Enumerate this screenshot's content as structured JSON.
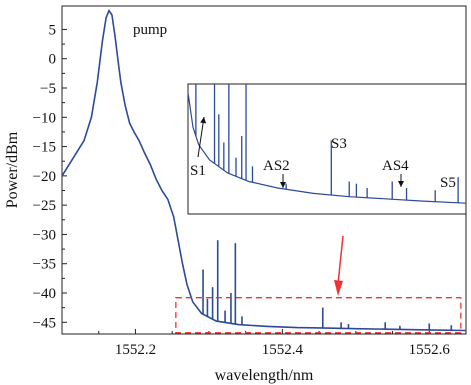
{
  "chart_data": {
    "type": "line",
    "title": "",
    "xlabel": "wavelength/nm",
    "ylabel": "Power/dBm",
    "xlim": [
      1552.1,
      1552.65
    ],
    "ylim": [
      -47,
      9
    ],
    "xticks": [
      "1552.2",
      "1552.4",
      "1552.6"
    ],
    "xtick_values": [
      1552.2,
      1552.4,
      1552.6
    ],
    "yticks": [
      "5",
      "0",
      "−5",
      "−10",
      "−15",
      "−20",
      "−25",
      "−30",
      "−35",
      "−40",
      "−45"
    ],
    "ytick_values": [
      5,
      0,
      -5,
      -10,
      -15,
      -20,
      -25,
      -30,
      -35,
      -40,
      -45
    ],
    "grid": false,
    "line_color": "#2b4a9b",
    "main_series": {
      "x": [
        1552.1,
        1552.115,
        1552.13,
        1552.14,
        1552.148,
        1552.155,
        1552.16,
        1552.164,
        1552.168,
        1552.172,
        1552.176,
        1552.18,
        1552.186,
        1552.192,
        1552.198,
        1552.205,
        1552.212,
        1552.22,
        1552.228,
        1552.236,
        1552.244,
        1552.252,
        1552.258,
        1552.264,
        1552.27,
        1552.278,
        1552.29,
        1552.31,
        1552.34,
        1552.38,
        1552.42,
        1552.46,
        1552.5,
        1552.55,
        1552.6,
        1552.65
      ],
      "y": [
        -20,
        -17,
        -14,
        -10,
        -4,
        3,
        7,
        8.2,
        7.5,
        4,
        0,
        -4,
        -8,
        -11,
        -12.5,
        -14,
        -16,
        -18,
        -20.5,
        -22.5,
        -24,
        -27,
        -31,
        -35,
        -38.5,
        -41.5,
        -43.5,
        -44.8,
        -45.4,
        -45.7,
        -45.9,
        -46.0,
        -46.1,
        -46.2,
        -46.3,
        -46.4
      ]
    },
    "spikes": [
      {
        "x": 1552.292,
        "y": -36
      },
      {
        "x": 1552.298,
        "y": -41
      },
      {
        "x": 1552.305,
        "y": -39
      },
      {
        "x": 1552.312,
        "y": -31
      },
      {
        "x": 1552.322,
        "y": -43
      },
      {
        "x": 1552.33,
        "y": -40
      },
      {
        "x": 1552.336,
        "y": -31.5
      },
      {
        "x": 1552.345,
        "y": -44
      },
      {
        "x": 1552.455,
        "y": -42.5
      },
      {
        "x": 1552.48,
        "y": -45
      },
      {
        "x": 1552.49,
        "y": -45.3
      },
      {
        "x": 1552.54,
        "y": -45
      },
      {
        "x": 1552.56,
        "y": -45.6
      },
      {
        "x": 1552.6,
        "y": -45.2
      },
      {
        "x": 1552.63,
        "y": -45.5
      }
    ],
    "highlight_box": {
      "x": [
        1552.255,
        1552.643
      ],
      "y": [
        -46.8,
        -40.8
      ]
    },
    "annotations": {
      "pump": "pump",
      "s1": "S1",
      "as2": "AS2",
      "s3": "S3",
      "as4": "AS4",
      "s5": "S5"
    },
    "inset": {
      "xlim": [
        1552.255,
        1552.643
      ],
      "ylim": [
        -46.8,
        -40.8
      ],
      "baseline": [
        {
          "x": 1552.255,
          "y": -41.2
        },
        {
          "x": 1552.262,
          "y": -42.8
        },
        {
          "x": 1552.27,
          "y": -43.6
        },
        {
          "x": 1552.285,
          "y": -44.3
        },
        {
          "x": 1552.31,
          "y": -44.9
        },
        {
          "x": 1552.34,
          "y": -45.3
        },
        {
          "x": 1552.38,
          "y": -45.6
        },
        {
          "x": 1552.43,
          "y": -45.85
        },
        {
          "x": 1552.48,
          "y": -46.0
        },
        {
          "x": 1552.53,
          "y": -46.1
        },
        {
          "x": 1552.58,
          "y": -46.2
        },
        {
          "x": 1552.643,
          "y": -46.3
        }
      ],
      "spikes": [
        {
          "x": 1552.266,
          "y": -40.8
        },
        {
          "x": 1552.292,
          "y": -40.8
        },
        {
          "x": 1552.298,
          "y": -42.2
        },
        {
          "x": 1552.305,
          "y": -43.5
        },
        {
          "x": 1552.312,
          "y": -40.8
        },
        {
          "x": 1552.322,
          "y": -44.2
        },
        {
          "x": 1552.33,
          "y": -43.2
        },
        {
          "x": 1552.336,
          "y": -40.8
        },
        {
          "x": 1552.345,
          "y": -44.6
        },
        {
          "x": 1552.392,
          "y": -45.4
        },
        {
          "x": 1552.455,
          "y": -43.4
        },
        {
          "x": 1552.48,
          "y": -45.3
        },
        {
          "x": 1552.49,
          "y": -45.4
        },
        {
          "x": 1552.505,
          "y": -45.6
        },
        {
          "x": 1552.54,
          "y": -45.3
        },
        {
          "x": 1552.56,
          "y": -45.6
        },
        {
          "x": 1552.6,
          "y": -45.7
        },
        {
          "x": 1552.632,
          "y": -45.1
        }
      ]
    }
  }
}
